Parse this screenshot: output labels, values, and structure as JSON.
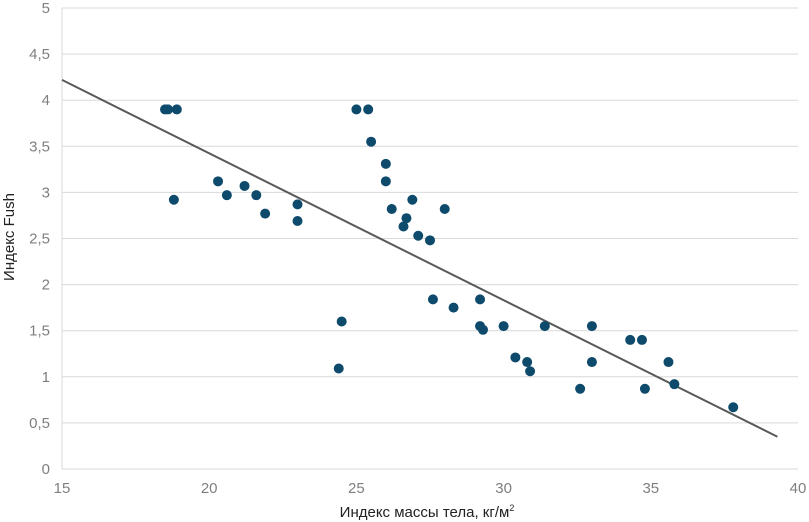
{
  "colors": {
    "points": "#0d4a6b",
    "trend": "#595959",
    "grid": "#d9d9d9",
    "ticks": "#7f7f7f"
  },
  "chart_data": {
    "type": "scatter",
    "title": "",
    "xlabel": "Индекс массы тела, кг/м",
    "xlabel_sup": "2",
    "ylabel": "Индекс Fush",
    "xlim": [
      15,
      40
    ],
    "ylim": [
      0,
      5
    ],
    "xticks": [
      15,
      20,
      25,
      30,
      35,
      40
    ],
    "xtick_labels": [
      "15",
      "20",
      "25",
      "30",
      "35",
      "40"
    ],
    "yticks": [
      0,
      0.5,
      1,
      1.5,
      2,
      2.5,
      3,
      3.5,
      4,
      4.5,
      5
    ],
    "ytick_labels": [
      "0",
      "0,5",
      "1",
      "1,5",
      "2",
      "2,5",
      "3",
      "3,5",
      "4",
      "4,5",
      "5"
    ],
    "grid": "horizontal",
    "trendline": {
      "x": [
        15,
        39.3
      ],
      "y": [
        4.22,
        0.35
      ]
    },
    "points": [
      {
        "x": 18.5,
        "y": 3.9
      },
      {
        "x": 18.6,
        "y": 3.9
      },
      {
        "x": 18.9,
        "y": 3.9
      },
      {
        "x": 18.8,
        "y": 2.92
      },
      {
        "x": 20.3,
        "y": 3.12
      },
      {
        "x": 20.6,
        "y": 2.97
      },
      {
        "x": 21.2,
        "y": 3.07
      },
      {
        "x": 21.6,
        "y": 2.97
      },
      {
        "x": 21.9,
        "y": 2.77
      },
      {
        "x": 23.0,
        "y": 2.87
      },
      {
        "x": 23.0,
        "y": 2.69
      },
      {
        "x": 24.4,
        "y": 1.09
      },
      {
        "x": 24.5,
        "y": 1.6
      },
      {
        "x": 25.0,
        "y": 3.9
      },
      {
        "x": 25.4,
        "y": 3.9
      },
      {
        "x": 25.5,
        "y": 3.55
      },
      {
        "x": 26.0,
        "y": 3.31
      },
      {
        "x": 26.0,
        "y": 3.12
      },
      {
        "x": 26.2,
        "y": 2.82
      },
      {
        "x": 26.6,
        "y": 2.63
      },
      {
        "x": 26.7,
        "y": 2.72
      },
      {
        "x": 26.9,
        "y": 2.92
      },
      {
        "x": 27.1,
        "y": 2.53
      },
      {
        "x": 27.5,
        "y": 2.48
      },
      {
        "x": 27.6,
        "y": 1.84
      },
      {
        "x": 28.0,
        "y": 2.82
      },
      {
        "x": 28.3,
        "y": 1.75
      },
      {
        "x": 29.2,
        "y": 1.84
      },
      {
        "x": 29.2,
        "y": 1.55
      },
      {
        "x": 29.3,
        "y": 1.51
      },
      {
        "x": 30.0,
        "y": 1.55
      },
      {
        "x": 30.4,
        "y": 1.21
      },
      {
        "x": 30.8,
        "y": 1.16
      },
      {
        "x": 30.9,
        "y": 1.06
      },
      {
        "x": 31.4,
        "y": 1.55
      },
      {
        "x": 32.6,
        "y": 0.87
      },
      {
        "x": 33.0,
        "y": 1.55
      },
      {
        "x": 33.0,
        "y": 1.16
      },
      {
        "x": 34.3,
        "y": 1.4
      },
      {
        "x": 34.7,
        "y": 1.4
      },
      {
        "x": 34.8,
        "y": 0.87
      },
      {
        "x": 35.6,
        "y": 1.16
      },
      {
        "x": 35.8,
        "y": 0.92
      },
      {
        "x": 37.8,
        "y": 0.67
      }
    ]
  }
}
